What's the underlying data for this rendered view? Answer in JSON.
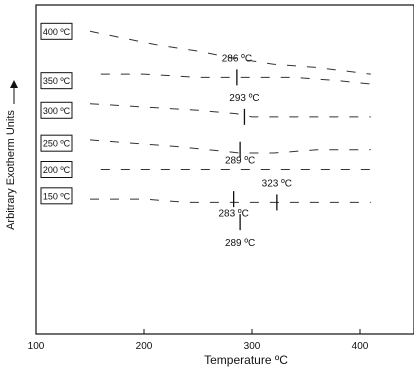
{
  "chart_data": {
    "type": "line",
    "xlabel": "Temperature ºC",
    "ylabel": "Arbitrary Exotherm Units",
    "xlim": [
      100,
      450
    ],
    "ylim": [
      0,
      100
    ],
    "x_ticks": [
      "100",
      "200",
      "300",
      "400"
    ],
    "grid": false,
    "legend": "none",
    "curve_labels": [
      "400 ºC",
      "350 ºC",
      "300 ºC",
      "250 ºC",
      "200 ºC",
      "150 ºC"
    ],
    "curve_levels": [
      92,
      77,
      68,
      58,
      50,
      42
    ],
    "series": [
      {
        "name": "400 ºC",
        "x": [
          150,
          180,
          210,
          250,
          280,
          320,
          360,
          410
        ],
        "y": [
          92,
          90,
          88,
          86,
          84,
          82,
          81,
          79
        ]
      },
      {
        "name": "350 ºC",
        "x": [
          160,
          200,
          250,
          286,
          300,
          340,
          380,
          410
        ],
        "y": [
          79,
          79,
          78,
          78,
          78,
          78,
          77,
          76
        ]
      },
      {
        "name": "300 ºC",
        "x": [
          150,
          200,
          250,
          285,
          300,
          340,
          380,
          410
        ],
        "y": [
          70,
          69,
          68,
          67,
          66,
          66,
          66,
          66
        ]
      },
      {
        "name": "250 ºC",
        "x": [
          150,
          190,
          230,
          260,
          289,
          320,
          360,
          410
        ],
        "y": [
          59,
          58,
          57,
          56,
          55,
          55,
          56,
          56
        ]
      },
      {
        "name": "200 ºC",
        "x": [
          160,
          200,
          240,
          280,
          320,
          360,
          410
        ],
        "y": [
          50,
          50,
          50,
          50,
          50,
          50,
          50
        ]
      },
      {
        "name": "150 ºC",
        "x": [
          150,
          200,
          240,
          283,
          300,
          340,
          380,
          410
        ],
        "y": [
          41,
          41,
          40,
          40,
          40,
          40,
          40,
          40
        ]
      }
    ],
    "annotations": [
      {
        "text": "286 ºC",
        "x": 286,
        "y": 84,
        "mark_y": 78
      },
      {
        "text": "293 ºC",
        "x": 293,
        "y": 72,
        "mark_y": 66
      },
      {
        "text": "289 ºC",
        "x": 289,
        "y": 53,
        "mark_y": 56
      },
      {
        "text": "323 ºC",
        "x": 323,
        "y": 46,
        "mark_y": 40
      },
      {
        "text": "283 ºC",
        "x": 283,
        "y": 37,
        "mark_y": 41
      },
      {
        "text": "289 ºC",
        "x": 289,
        "y": 28,
        "mark_y": 34
      }
    ]
  }
}
